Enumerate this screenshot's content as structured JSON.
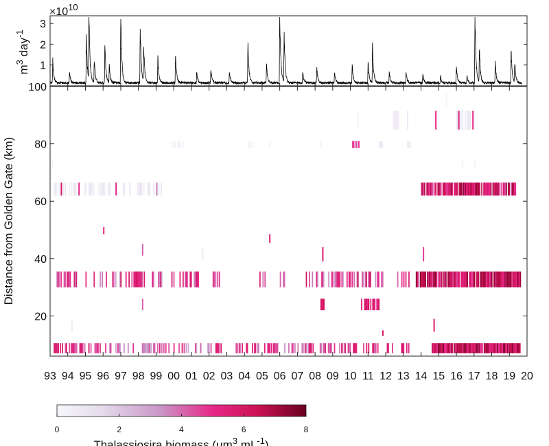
{
  "chart_data": [
    {
      "type": "line",
      "panel": "discharge",
      "ylabel_base": "m",
      "ylabel_sup1": "3",
      "ylabel_mid": " day",
      "ylabel_sup2": "-1",
      "exponent_base": "×10",
      "exponent_power": "10",
      "y_ticks": [
        "1",
        "2",
        "3"
      ],
      "ylim": [
        0,
        3.3
      ],
      "xlim": [
        1993,
        2020
      ],
      "x_grid": false,
      "line_color": "#000000",
      "peaks": [
        {
          "x": 1993.15,
          "y": 1.1
        },
        {
          "x": 1994.1,
          "y": 0.5
        },
        {
          "x": 1995.05,
          "y": 2.2
        },
        {
          "x": 1995.2,
          "y": 3.3
        },
        {
          "x": 1995.5,
          "y": 1.2
        },
        {
          "x": 1996.1,
          "y": 1.8
        },
        {
          "x": 1996.35,
          "y": 0.8
        },
        {
          "x": 1997.0,
          "y": 3.4
        },
        {
          "x": 1998.1,
          "y": 2.8
        },
        {
          "x": 1998.3,
          "y": 1.7
        },
        {
          "x": 1999.1,
          "y": 1.2
        },
        {
          "x": 2000.1,
          "y": 1.5
        },
        {
          "x": 2001.3,
          "y": 0.5
        },
        {
          "x": 2002.1,
          "y": 0.7
        },
        {
          "x": 2003.15,
          "y": 0.6
        },
        {
          "x": 2004.2,
          "y": 1.8
        },
        {
          "x": 2005.25,
          "y": 0.9
        },
        {
          "x": 2006.0,
          "y": 3.4
        },
        {
          "x": 2006.25,
          "y": 2.3
        },
        {
          "x": 2007.3,
          "y": 0.5
        },
        {
          "x": 2008.1,
          "y": 0.7
        },
        {
          "x": 2009.1,
          "y": 0.5
        },
        {
          "x": 2010.1,
          "y": 0.9
        },
        {
          "x": 2011.0,
          "y": 1.0
        },
        {
          "x": 2011.25,
          "y": 1.9
        },
        {
          "x": 2012.2,
          "y": 0.5
        },
        {
          "x": 2013.15,
          "y": 0.5
        },
        {
          "x": 2014.1,
          "y": 0.4
        },
        {
          "x": 2015.1,
          "y": 0.3
        },
        {
          "x": 2016.0,
          "y": 0.8
        },
        {
          "x": 2016.6,
          "y": 0.3
        },
        {
          "x": 2017.05,
          "y": 3.3
        },
        {
          "x": 2017.3,
          "y": 1.6
        },
        {
          "x": 2018.2,
          "y": 1.0
        },
        {
          "x": 2019.1,
          "y": 1.5
        },
        {
          "x": 2019.3,
          "y": 1.0
        }
      ]
    },
    {
      "type": "heatmap",
      "panel": "biomass",
      "ylabel": "Distance from Golden Gate  (km)",
      "x_ticks": [
        "93",
        "94",
        "95",
        "96",
        "97",
        "98",
        "99",
        "00",
        "01",
        "02",
        "03",
        "04",
        "05",
        "06",
        "07",
        "08",
        "09",
        "10",
        "11",
        "12",
        "13",
        "14",
        "15",
        "16",
        "17",
        "18",
        "19",
        "20"
      ],
      "y_ticks": [
        "20",
        "40",
        "60",
        "80",
        "100"
      ],
      "ylim": [
        6,
        100
      ],
      "xlim": [
        1993,
        2020
      ],
      "colorbar": {
        "label_pre": "Thalassiosira biomass (μm",
        "label_sup1": "3",
        "label_mid": " mL",
        "label_sup2": "-1",
        "label_post": ")",
        "ticks": [
          "0",
          "2",
          "4",
          "6",
          "8"
        ],
        "range": [
          0,
          8
        ],
        "colors": [
          "#f7f7fb",
          "#e8e2ef",
          "#c794c7",
          "#e7298a",
          "#ce1256",
          "#67001f"
        ]
      },
      "bands": [
        {
          "ymin": 7,
          "ymax": 10.5,
          "seed": 3,
          "segments": [
            [
              1993.2,
              1995.8,
              0.6,
              3.5,
              6.3
            ],
            [
              1996.0,
              1999.0,
              0.45,
              2.5,
              5.5
            ],
            [
              1999.0,
              2001.5,
              0.35,
              2.5,
              5.5
            ],
            [
              2001.5,
              2002.1,
              0.25,
              3,
              5.5
            ],
            [
              2002.3,
              2002.7,
              0.9,
              4.5,
              6.2
            ],
            [
              2003.5,
              2005.5,
              0.4,
              3,
              6
            ],
            [
              2005.5,
              2007.8,
              0.45,
              3,
              6
            ],
            [
              2007.8,
              2009.5,
              0.5,
              3,
              6
            ],
            [
              2009.5,
              2011.7,
              0.5,
              3,
              6
            ],
            [
              2012.0,
              2013.5,
              0.35,
              3,
              6
            ],
            [
              2014.6,
              2019.6,
              0.95,
              4.5,
              7.8
            ]
          ]
        },
        {
          "ymin": 13,
          "ymax": 15,
          "seed": 5,
          "segments": [
            [
              2011.8,
              2011.9,
              1,
              6,
              6
            ]
          ]
        },
        {
          "ymin": 22,
          "ymax": 26,
          "seed": 7,
          "segments": [
            [
              1998.2,
              1998.3,
              1,
              4,
              4
            ],
            [
              2008.3,
              2008.5,
              1,
              5.5,
              6.5
            ],
            [
              2010.6,
              2011.6,
              0.6,
              4.5,
              6.5
            ]
          ]
        },
        {
          "ymin": 14.5,
          "ymax": 19,
          "seed": 9,
          "segments": [
            [
              1994.2,
              1994.3,
              1,
              1,
              1
            ],
            [
              2014.7,
              2014.8,
              1,
              5.5,
              5.5
            ]
          ]
        },
        {
          "ymin": 30,
          "ymax": 35.5,
          "seed": 11,
          "segments": [
            [
              1993.3,
              1994.5,
              0.55,
              3,
              6.2
            ],
            [
              1995.0,
              1996.2,
              0.35,
              2.5,
              5.5
            ],
            [
              1996.4,
              1997.5,
              0.35,
              2.5,
              6.5
            ],
            [
              1997.6,
              1998.2,
              0.8,
              4,
              6.5
            ],
            [
              1998.3,
              1999.4,
              0.3,
              3,
              6
            ],
            [
              1999.4,
              2001.5,
              0.3,
              3,
              6
            ],
            [
              2002.2,
              2002.6,
              0.9,
              4,
              5
            ],
            [
              2004.5,
              2006.6,
              0.2,
              3.5,
              5.5
            ],
            [
              2007.3,
              2009.2,
              0.45,
              3,
              6
            ],
            [
              2009.2,
              2011.8,
              0.45,
              3,
              6
            ],
            [
              2012.3,
              2013.5,
              0.2,
              3,
              6
            ],
            [
              2013.7,
              2019.6,
              0.9,
              4,
              7.8
            ]
          ]
        },
        {
          "ymin": 39,
          "ymax": 44,
          "seed": 13,
          "segments": [
            [
              2001.6,
              2001.7,
              1,
              0.8,
              0.8
            ],
            [
              2008.4,
              2008.5,
              1,
              5.5,
              5.5
            ],
            [
              2014.1,
              2014.2,
              1,
              4.5,
              4.5
            ]
          ]
        },
        {
          "ymin": 41,
          "ymax": 45,
          "seed": 15,
          "segments": [
            [
              1998.2,
              1998.3,
              1,
              4,
              4
            ]
          ]
        },
        {
          "ymin": 45.5,
          "ymax": 48.5,
          "seed": 17,
          "segments": [
            [
              2005.4,
              2005.5,
              1,
              5.5,
              5.5
            ]
          ]
        },
        {
          "ymin": 48.5,
          "ymax": 51,
          "seed": 19,
          "segments": [
            [
              1996.0,
              1996.1,
              1,
              5,
              5
            ]
          ]
        },
        {
          "ymin": 62,
          "ymax": 66.5,
          "seed": 21,
          "segments": [
            [
              1993.2,
              1995.5,
              0.6,
              0.3,
              1.5
            ],
            [
              1993.6,
              1993.7,
              1,
              6,
              6
            ],
            [
              1994.6,
              1994.7,
              1,
              5,
              5
            ],
            [
              1995.5,
              1999.5,
              0.45,
              0.3,
              1.5
            ],
            [
              1996.7,
              1996.8,
              1,
              5,
              5
            ],
            [
              1999.0,
              1999.1,
              1,
              3.5,
              3.5
            ],
            [
              2014.0,
              2019.4,
              0.85,
              4,
              7.5
            ]
          ]
        },
        {
          "ymin": 78.5,
          "ymax": 81,
          "seed": 23,
          "segments": [
            [
              1999.5,
              2000.5,
              0.5,
              0.3,
              1
            ],
            [
              2004.2,
              2004.6,
              0.5,
              0.3,
              0.8
            ],
            [
              2005.4,
              2005.5,
              1,
              0.4,
              0.4
            ],
            [
              2008.3,
              2008.4,
              1,
              0.4,
              0.4
            ],
            [
              2010.1,
              2010.5,
              0.8,
              4,
              5
            ],
            [
              2011.6,
              2011.8,
              1,
              1,
              1
            ],
            [
              2013.2,
              2013.4,
              1,
              0.8,
              0.8
            ]
          ]
        },
        {
          "ymin": 71.5,
          "ymax": 74,
          "seed": 25,
          "segments": [
            [
              2016.3,
              2016.4,
              1,
              0.5,
              0.5
            ],
            [
              2017.0,
              2017.1,
              1,
              0.5,
              0.5
            ],
            [
              1993.1,
              1993.2,
              1,
              0.3,
              0.3
            ]
          ]
        },
        {
          "ymin": 85,
          "ymax": 91.5,
          "seed": 27,
          "segments": [
            [
              2010.4,
              2010.5,
              1,
              0.3,
              0.3
            ],
            [
              2012.4,
              2012.7,
              0.8,
              0.6,
              1
            ],
            [
              2013.2,
              2013.3,
              1,
              1,
              1
            ],
            [
              2014.8,
              2014.9,
              1,
              5,
              5
            ],
            [
              2016.0,
              2016.8,
              0.7,
              0.6,
              1.5
            ],
            [
              2016.1,
              2016.2,
              1,
              5.5,
              5.5
            ],
            [
              2016.9,
              2017.0,
              1,
              5,
              5
            ]
          ]
        },
        {
          "ymin": 92.5,
          "ymax": 98,
          "seed": 29,
          "segments": [
            [
              2015.4,
              2015.5,
              1,
              0.3,
              0.3
            ]
          ]
        }
      ]
    }
  ]
}
